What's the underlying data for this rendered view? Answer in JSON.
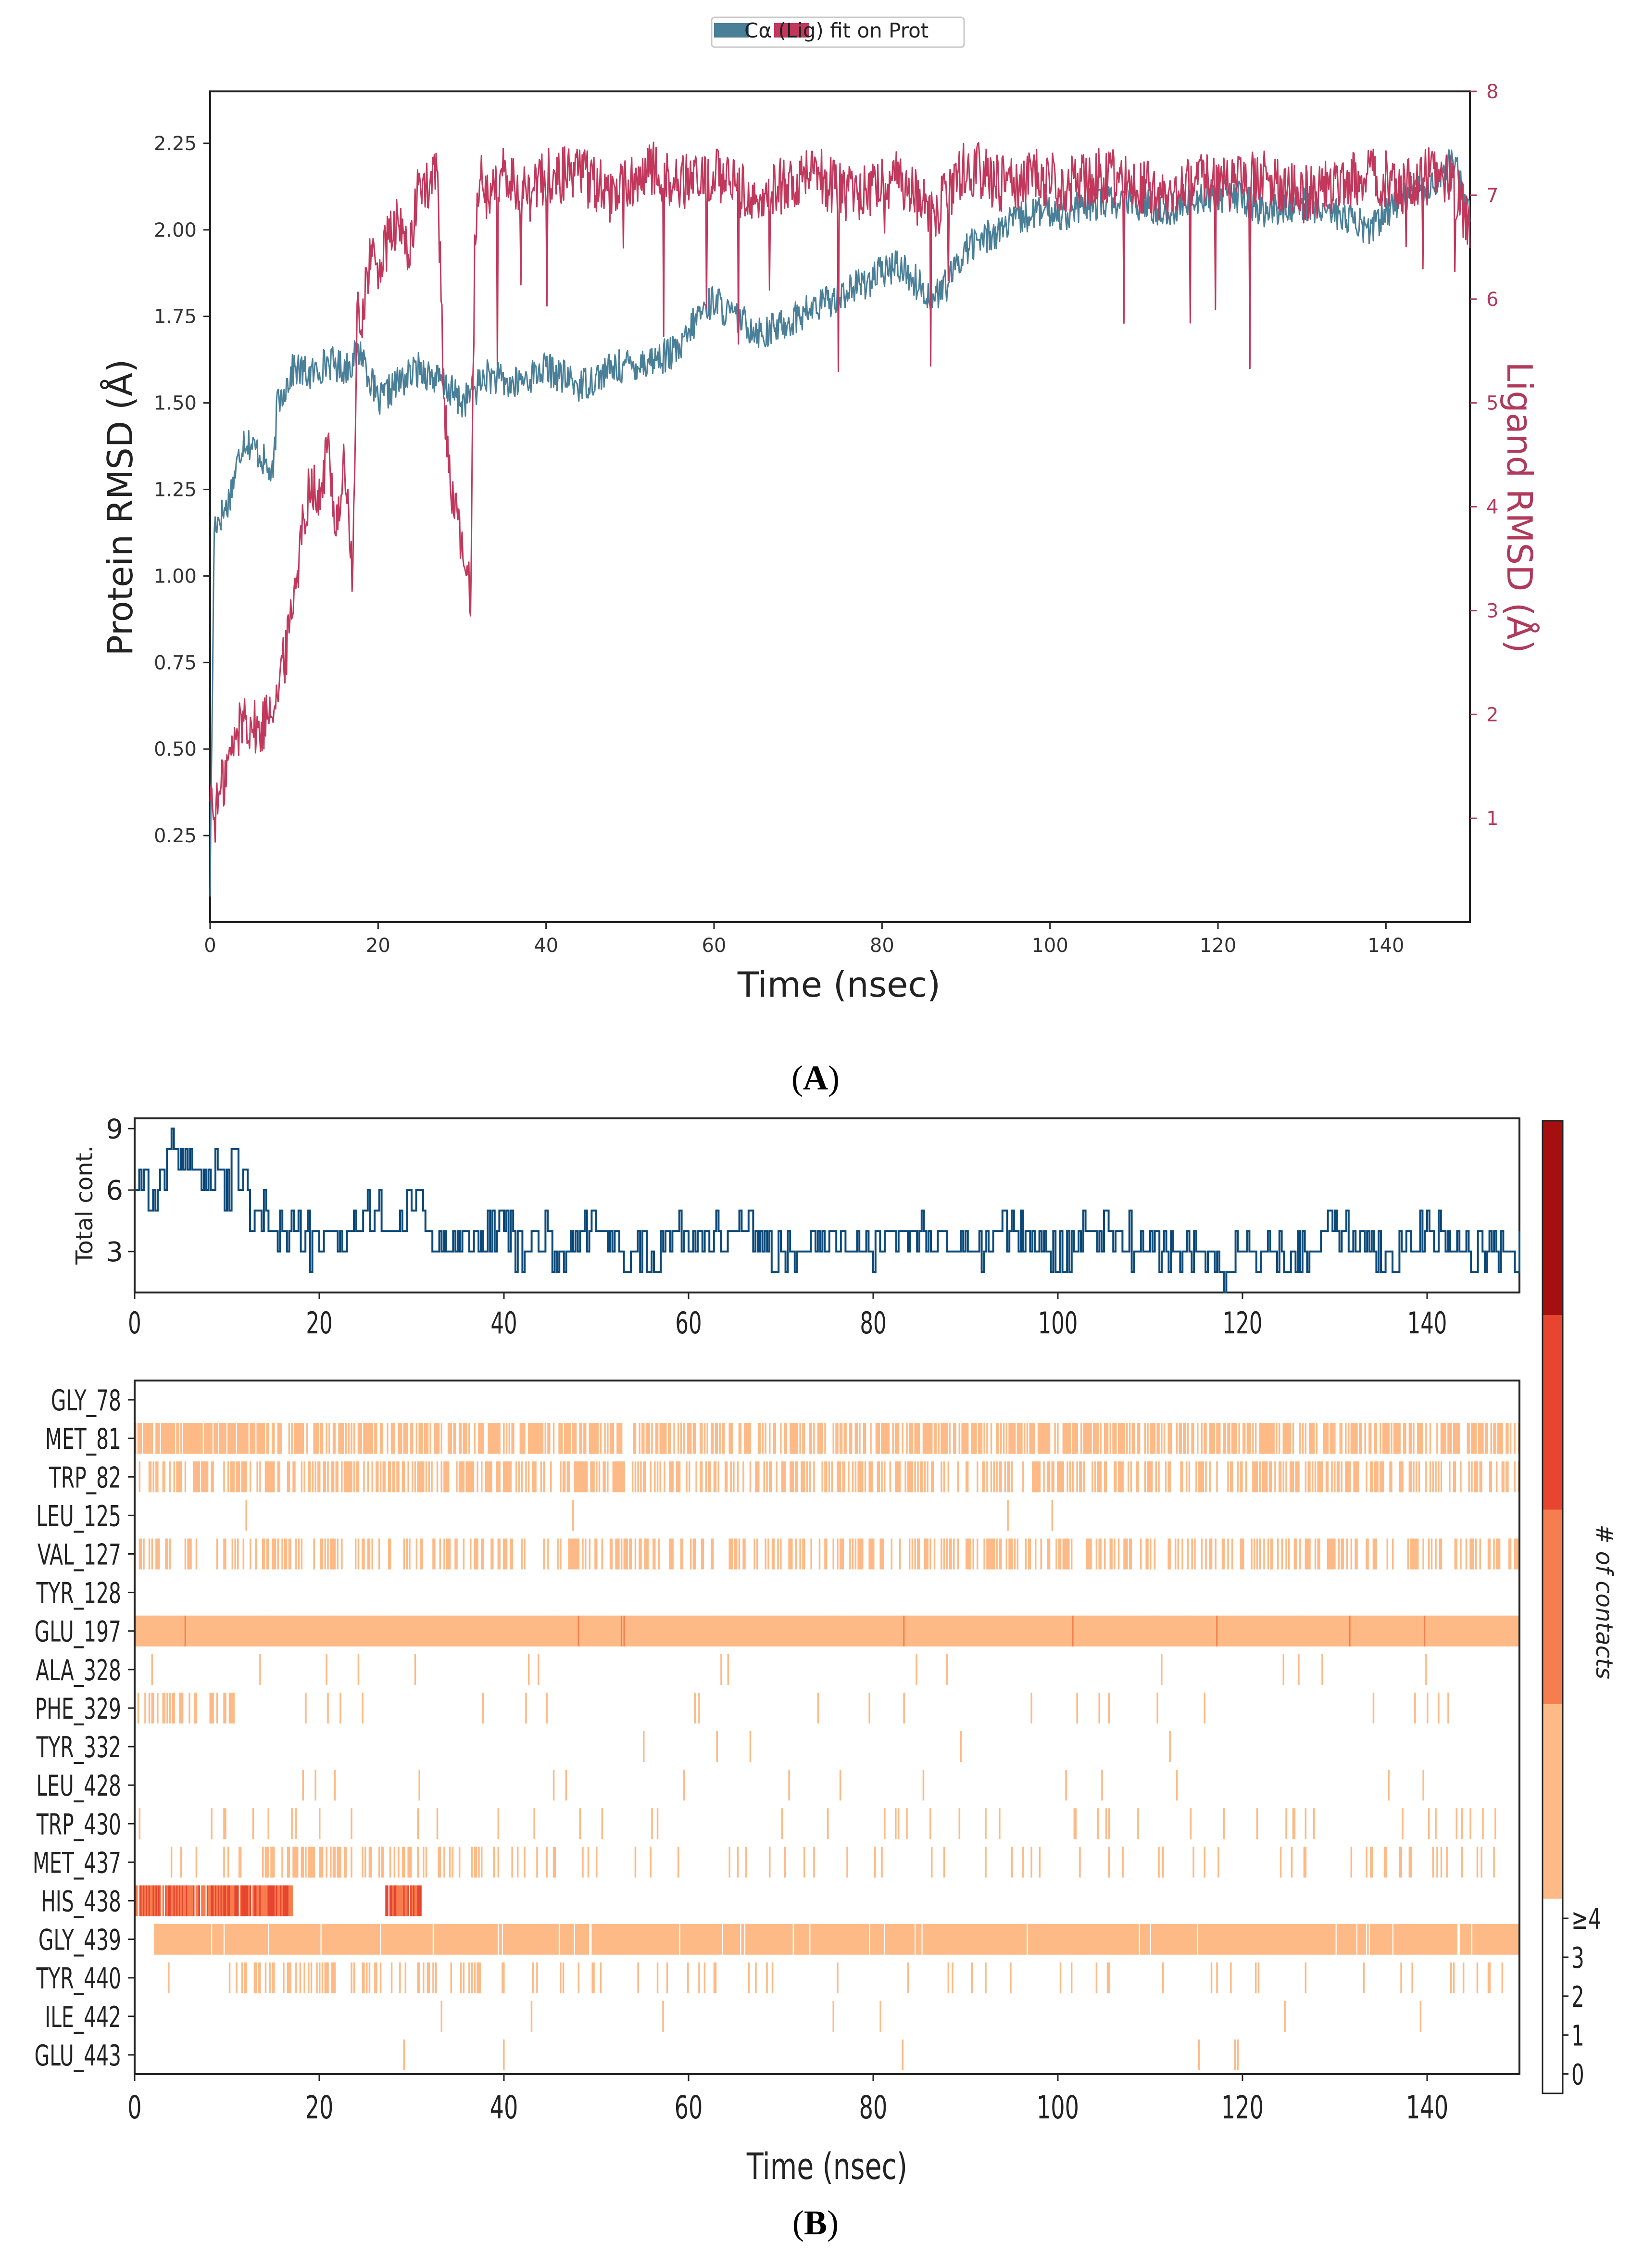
{
  "panel_labels": {
    "a_letter": "A",
    "b_letter": "B",
    "open": "(",
    "close": ")"
  },
  "chart_data": [
    {
      "id": "A",
      "type": "line",
      "legend": {
        "placement": "top-center",
        "text": "Cα    (Lig) fit on Prot"
      },
      "xlabel": "Time (nsec)",
      "ylabel_left": "Protein RMSD (Å)",
      "ylabel_right": "Ligand RMSD (Å)",
      "xlim": [
        0,
        150
      ],
      "ylim_left": [
        0.0,
        2.4
      ],
      "ylim_right": [
        0.0,
        8.0
      ],
      "xticks": [
        0,
        20,
        40,
        60,
        80,
        100,
        120,
        140
      ],
      "yticks_left": [
        0.25,
        0.5,
        0.75,
        1.0,
        1.25,
        1.5,
        1.75,
        2.0,
        2.25
      ],
      "yticks_left_labels": [
        "0.25",
        "0.50",
        "0.75",
        "1.00",
        "1.25",
        "1.50",
        "1.75",
        "2.00",
        "2.25"
      ],
      "yticks_right": [
        1,
        2,
        3,
        4,
        5,
        6,
        7,
        8
      ],
      "series": [
        {
          "name": "Cα",
          "axis": "left",
          "color": "#4a7f98",
          "x": [
            0,
            0.5,
            2,
            4,
            6,
            7.5,
            8,
            9,
            10,
            12,
            14,
            16,
            18,
            20,
            22,
            25,
            28,
            30,
            33,
            36,
            40,
            44,
            48,
            52,
            56,
            58,
            60,
            62,
            66,
            70,
            74,
            78,
            82,
            86,
            88,
            90,
            94,
            98,
            102,
            106,
            110,
            114,
            118,
            122,
            126,
            130,
            134,
            138,
            142,
            146,
            148,
            150
          ],
          "y": [
            0.1,
            1.15,
            1.2,
            1.4,
            1.35,
            1.28,
            1.5,
            1.55,
            1.6,
            1.58,
            1.62,
            1.6,
            1.65,
            1.5,
            1.55,
            1.6,
            1.55,
            1.5,
            1.58,
            1.55,
            1.6,
            1.55,
            1.6,
            1.62,
            1.65,
            1.75,
            1.8,
            1.75,
            1.7,
            1.75,
            1.8,
            1.85,
            1.9,
            1.8,
            1.85,
            1.95,
            2.0,
            2.05,
            2.05,
            2.08,
            2.08,
            2.05,
            2.1,
            2.1,
            2.05,
            2.08,
            2.05,
            2.0,
            2.1,
            2.15,
            2.2,
            2.05
          ]
        },
        {
          "name": "(Lig) fit on Prot",
          "axis": "right",
          "color": "#c1385c",
          "x": [
            0,
            0.5,
            2,
            4,
            6,
            7,
            8,
            9,
            10,
            11,
            12,
            13,
            14,
            15,
            16,
            17,
            17.5,
            18,
            19,
            20,
            22,
            24,
            25,
            26,
            27,
            28,
            29,
            30,
            31,
            31.5,
            32,
            33,
            35,
            38,
            40,
            44,
            48,
            52,
            56,
            60,
            64,
            68,
            72,
            76,
            80,
            82,
            84,
            86,
            88,
            90,
            94,
            98,
            102,
            106,
            110,
            114,
            118,
            122,
            126,
            130,
            134,
            138,
            142,
            146,
            148,
            150
          ],
          "y": [
            1.3,
            1.0,
            1.5,
            2.0,
            1.8,
            2.1,
            2.2,
            2.6,
            3.2,
            3.8,
            4.3,
            4.0,
            4.6,
            3.8,
            4.4,
            3.3,
            5.8,
            5.8,
            6.4,
            6.3,
            6.7,
            6.5,
            7.2,
            7.0,
            7.3,
            4.8,
            4.0,
            3.6,
            3.1,
            6.5,
            7.2,
            7.0,
            7.2,
            7.0,
            7.2,
            7.2,
            7.0,
            7.3,
            7.1,
            7.2,
            7.0,
            7.1,
            7.2,
            7.0,
            7.1,
            7.2,
            7.0,
            6.8,
            7.0,
            7.3,
            7.1,
            7.2,
            7.1,
            7.2,
            7.1,
            7.0,
            7.2,
            7.1,
            7.2,
            7.0,
            7.1,
            7.2,
            7.1,
            7.2,
            7.1,
            6.7
          ]
        }
      ]
    },
    {
      "id": "B-top",
      "type": "line",
      "ylabel": "Total cont.",
      "xlim": [
        0,
        150
      ],
      "ylim": [
        1,
        9.5
      ],
      "xticks": [
        0,
        20,
        40,
        60,
        80,
        100,
        120,
        140
      ],
      "yticks": [
        3,
        6,
        9
      ],
      "series": [
        {
          "color": "#0c4a7a",
          "x": [
            0,
            1,
            2,
            3,
            4,
            5,
            6,
            7,
            8,
            9,
            10,
            11,
            12,
            13,
            14,
            16,
            18,
            20,
            22,
            24,
            26,
            28,
            30,
            31,
            32,
            34,
            36,
            38,
            40,
            42,
            44,
            46,
            50,
            55,
            60,
            65,
            70,
            75,
            80,
            85,
            90,
            95,
            100,
            105,
            110,
            115,
            118,
            120,
            125,
            130,
            135,
            140,
            145,
            150
          ],
          "y": [
            6,
            7,
            5,
            7,
            8,
            7,
            8,
            7,
            6,
            7,
            6,
            7,
            6,
            4,
            5,
            4,
            4,
            3,
            4,
            4,
            5,
            4,
            5,
            6,
            3,
            4,
            3,
            4,
            4,
            3,
            4,
            3,
            4,
            3,
            4,
            4,
            3,
            4,
            3,
            4,
            3,
            4,
            3,
            4,
            3,
            3,
            2,
            3,
            3,
            4,
            3,
            4,
            3,
            3
          ]
        }
      ]
    },
    {
      "id": "B-heatmap",
      "type": "heatmap",
      "xlabel": "Time (nsec)",
      "xlim": [
        0,
        150
      ],
      "xticks": [
        0,
        20,
        40,
        60,
        80,
        100,
        120,
        140
      ],
      "residues": [
        "GLY_78",
        "MET_81",
        "TRP_82",
        "LEU_125",
        "VAL_127",
        "TYR_128",
        "GLU_197",
        "ALA_328",
        "PHE_329",
        "TYR_332",
        "LEU_428",
        "TRP_430",
        "MET_437",
        "HIS_438",
        "GLY_439",
        "TYR_440",
        "ILE_442",
        "GLU_443"
      ],
      "colorbar": {
        "label": "# of contacts",
        "ticks": [
          "0",
          "1",
          "2",
          "3",
          "≥4"
        ],
        "colors": [
          "#ffffff",
          "#fdba86",
          "#f67d4e",
          "#e84530",
          "#a50f0f"
        ]
      },
      "rows": [
        {
          "residue": "GLY_78",
          "density": 0.004,
          "level": 1,
          "segments": []
        },
        {
          "residue": "MET_81",
          "density": 0.55,
          "level": 1,
          "segments": [
            [
              0,
              14,
              0.85
            ]
          ]
        },
        {
          "residue": "TRP_82",
          "density": 0.45,
          "level": 1,
          "segments": []
        },
        {
          "residue": "LEU_125",
          "density": 0.01,
          "level": 1,
          "segments": []
        },
        {
          "residue": "VAL_127",
          "density": 0.35,
          "level": 1,
          "segments": []
        },
        {
          "residue": "TYR_128",
          "density": 0.0,
          "level": 1,
          "segments": []
        },
        {
          "residue": "GLU_197",
          "density": 0.0,
          "level": 1,
          "segments": [
            [
              0,
              150,
              1.0
            ]
          ]
        },
        {
          "residue": "ALA_328",
          "density": 0.01,
          "level": 1,
          "segments": []
        },
        {
          "residue": "PHE_329",
          "density": 0.02,
          "level": 1,
          "segments": [
            [
              0,
              11,
              0.35
            ]
          ]
        },
        {
          "residue": "TYR_332",
          "density": 0.005,
          "level": 1,
          "segments": []
        },
        {
          "residue": "LEU_428",
          "density": 0.01,
          "level": 1,
          "segments": []
        },
        {
          "residue": "TRP_430",
          "density": 0.06,
          "level": 1,
          "segments": []
        },
        {
          "residue": "MET_437",
          "density": 0.09,
          "level": 1,
          "segments": [
            [
              14,
              38,
              0.4
            ]
          ]
        },
        {
          "residue": "HIS_438",
          "density": 0.0,
          "level": 2,
          "segments": [
            [
              0,
              17,
              0.95
            ],
            [
              27,
              31,
              0.9
            ]
          ]
        },
        {
          "residue": "GLY_439",
          "density": 0.0,
          "level": 1,
          "segments": [
            [
              2,
              150,
              0.97
            ]
          ]
        },
        {
          "residue": "TYR_440",
          "density": 0.05,
          "level": 1,
          "segments": [
            [
              10,
              38,
              0.35
            ]
          ]
        },
        {
          "residue": "ILE_442",
          "density": 0.005,
          "level": 1,
          "segments": []
        },
        {
          "residue": "GLU_443",
          "density": 0.003,
          "level": 1,
          "segments": []
        }
      ]
    }
  ]
}
